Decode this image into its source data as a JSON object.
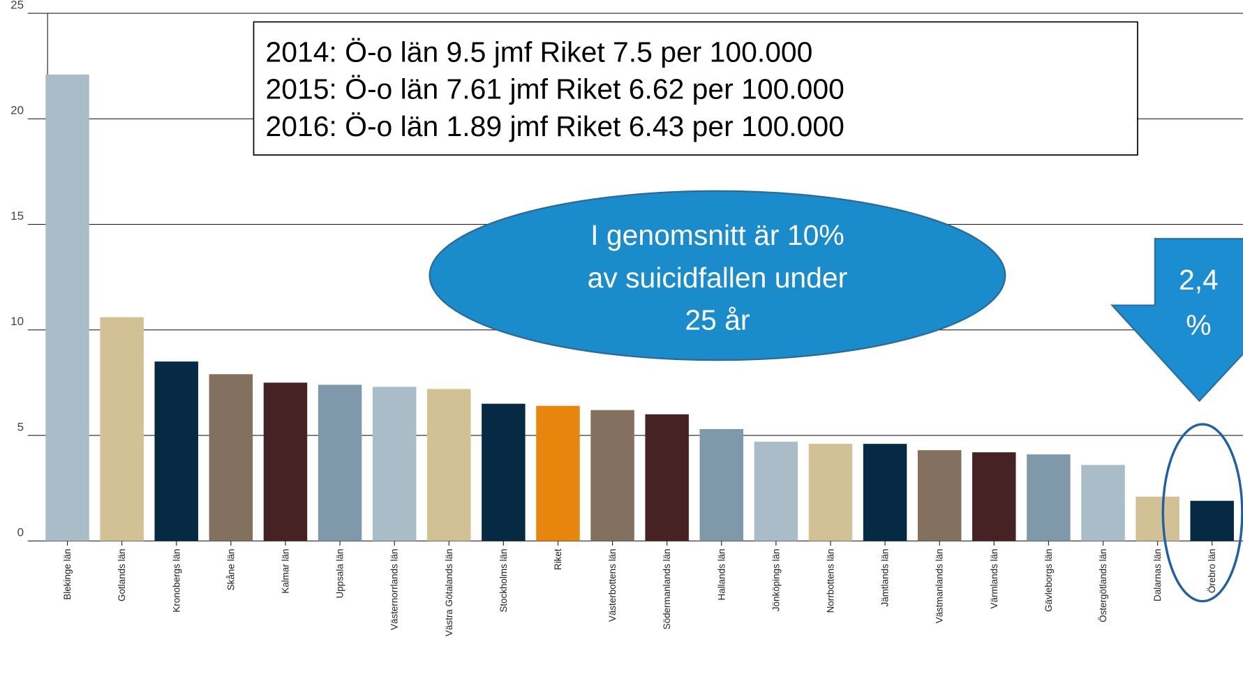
{
  "chart_data": {
    "type": "bar",
    "categories": [
      "Blekinge län",
      "Gotlands län",
      "Kronobergs län",
      "Skåne län",
      "Kalmar län",
      "Uppsala län",
      "Västernorrlands län",
      "Västra Götalands län",
      "Stockholms län",
      "Riket",
      "Västerbottens län",
      "Södermanlands län",
      "Hallands län",
      "Jönköpings län",
      "Norrbottens län",
      "Jämtlands län",
      "Västmanlands län",
      "Värmlands län",
      "Gävleborgs län",
      "Östergötlands län",
      "Dalarnas län",
      "Örebro län"
    ],
    "values": [
      22.1,
      10.6,
      8.5,
      7.9,
      7.5,
      7.4,
      7.3,
      7.2,
      6.5,
      6.4,
      6.2,
      6.0,
      5.3,
      4.7,
      4.6,
      4.6,
      4.3,
      4.2,
      4.1,
      3.6,
      2.1,
      1.9
    ],
    "colors": [
      "#a9bcc8",
      "#d3c196",
      "#062a43",
      "#84705f",
      "#472224",
      "#7f99aa",
      "#a9bcc8",
      "#d3c196",
      "#062a43",
      "#e8850d",
      "#84705f",
      "#472224",
      "#7f99aa",
      "#a9bcc8",
      "#d3c196",
      "#062a43",
      "#84705f",
      "#472224",
      "#7f99aa",
      "#a9bcc8",
      "#d3c196",
      "#062a43"
    ],
    "ylim": [
      0,
      25
    ],
    "yticks": [
      0,
      5,
      10,
      15,
      20,
      25
    ],
    "grid": true,
    "annotations": {
      "box": [
        "2014: Ö-o län 9.5 jmf Riket 7.5 per 100.000",
        "2015: Ö-o län 7.61 jmf Riket 6.62 per 100.000",
        "2016: Ö-o län 1.89 jmf Riket 6.43 per 100.000"
      ],
      "ellipse": [
        "I genomsnitt är 10%",
        "av suicidfallen under",
        "25 år"
      ],
      "arrow": [
        "2,4",
        "%"
      ]
    }
  }
}
